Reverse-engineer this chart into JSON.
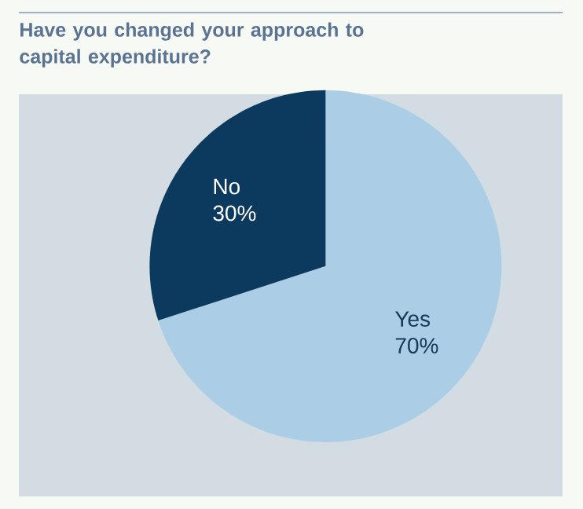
{
  "chart_data": {
    "type": "pie",
    "title": "Have you changed your approach to capital expenditure?",
    "categories": [
      "Yes",
      "No"
    ],
    "values": [
      70,
      30
    ],
    "value_labels": [
      "70%",
      "30%"
    ],
    "colors": [
      "#abcee6",
      "#0b3a5e"
    ]
  }
}
